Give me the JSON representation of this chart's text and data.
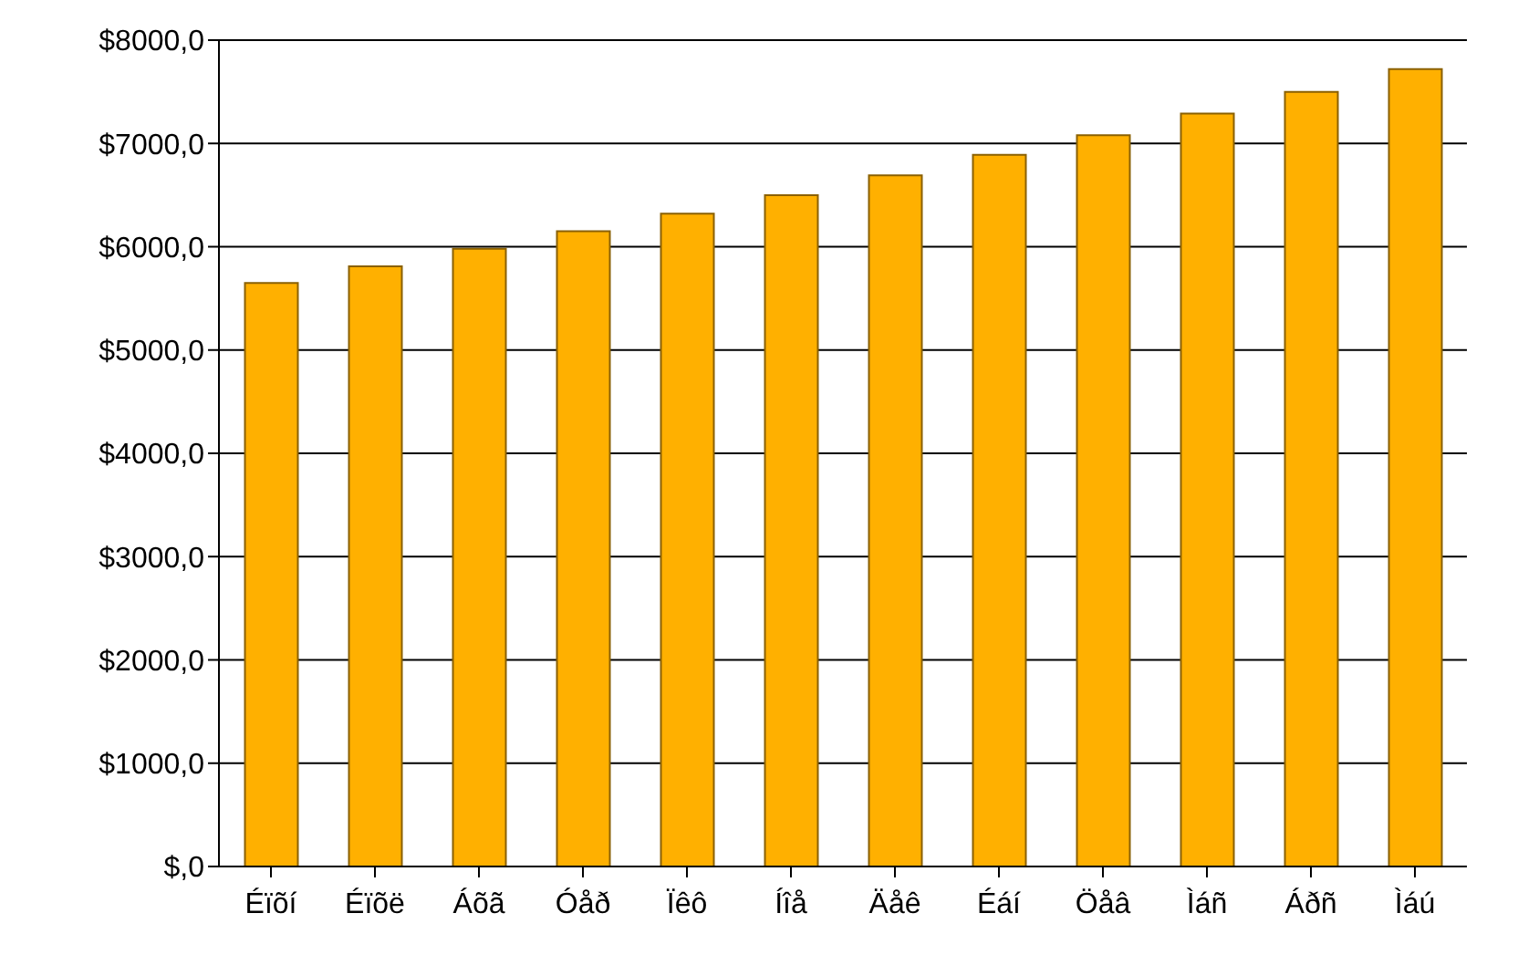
{
  "chart_data": {
    "type": "bar",
    "categories": [
      "Éïõí",
      "Éïõë",
      "Áõã",
      "Óåð",
      "Ïêô",
      "Íîå",
      "Äåê",
      "Éáí",
      "Öåâ",
      "Ìáñ",
      "Áðñ",
      "Ìáú"
    ],
    "values": [
      5650,
      5810,
      5980,
      6150,
      6320,
      6500,
      6690,
      6890,
      7080,
      7290,
      7500,
      7720
    ],
    "color": "#ffb000",
    "ylim": [
      0,
      8000
    ],
    "yticks": [
      {
        "value": 0,
        "label": "$,0"
      },
      {
        "value": 1000,
        "label": "$1000,0"
      },
      {
        "value": 2000,
        "label": "$2000,0"
      },
      {
        "value": 3000,
        "label": "$3000,0"
      },
      {
        "value": 4000,
        "label": "$4000,0"
      },
      {
        "value": 5000,
        "label": "$5000,0"
      },
      {
        "value": 6000,
        "label": "$6000,0"
      },
      {
        "value": 7000,
        "label": "$7000,0"
      },
      {
        "value": 8000,
        "label": "$8000,0"
      }
    ],
    "grid": "y"
  }
}
